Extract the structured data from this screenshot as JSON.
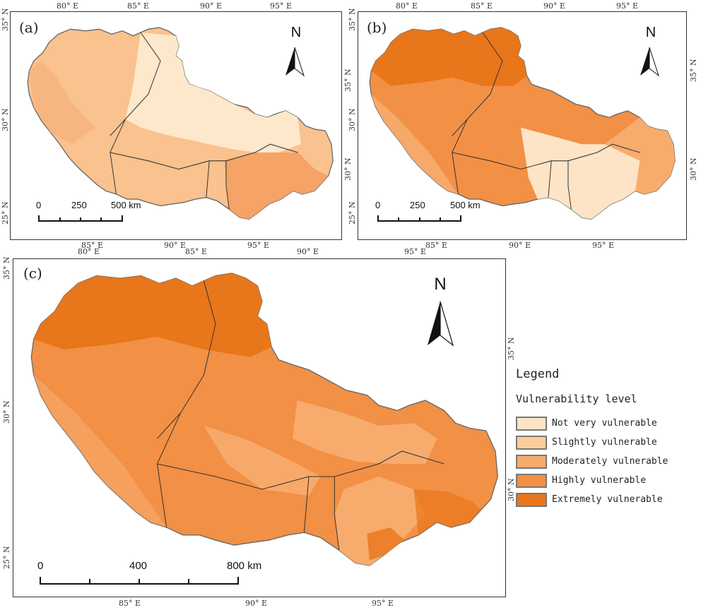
{
  "panels": {
    "a": {
      "label": "(a)"
    },
    "b": {
      "label": "(b)"
    },
    "c": {
      "label": "(c)"
    }
  },
  "north_label": "N",
  "lon_labels": {
    "l80": "80° E",
    "l85": "85° E",
    "l90": "90° E",
    "l95": "95° E"
  },
  "lat_labels": {
    "l25": "25° N",
    "l30": "30° N",
    "l35": "35° N"
  },
  "scalebar_small": {
    "t0": "0",
    "t1": "250",
    "t2": "500 km"
  },
  "scalebar_large": {
    "t0": "0",
    "t1": "400",
    "t2": "800 km"
  },
  "legend": {
    "title": "Legend",
    "subtitle": "Vulnerability level",
    "items": [
      {
        "label": "Not very vulnerable",
        "color": "#fde4c6"
      },
      {
        "label": "Slightly vulnerable",
        "color": "#fbcd9a"
      },
      {
        "label": "Moderately vulnerable",
        "color": "#f7ac6e"
      },
      {
        "label": "Highly vulnerable",
        "color": "#f29045"
      },
      {
        "label": "Extremely vulnerable",
        "color": "#e8761a"
      }
    ]
  },
  "colors": {
    "not_very": "#fde4c6",
    "slightly": "#fbcd9a",
    "moderately": "#f7ac6e",
    "highly": "#f29045",
    "extremely": "#e8761a",
    "boundary": "#333333"
  }
}
